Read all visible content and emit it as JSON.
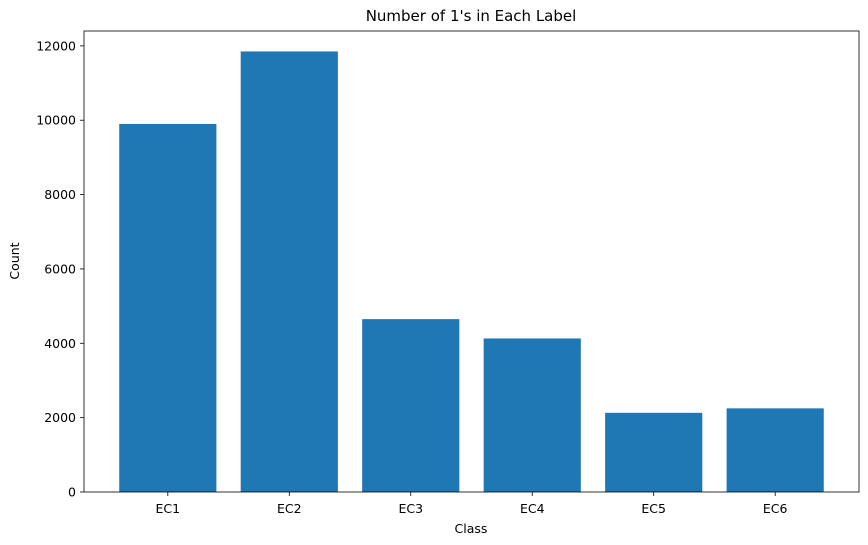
{
  "chart_data": {
    "type": "bar",
    "title": "Number of 1's in Each Label",
    "xlabel": "Class",
    "ylabel": "Count",
    "categories": [
      "EC1",
      "EC2",
      "EC3",
      "EC4",
      "EC5",
      "EC6"
    ],
    "values": [
      9900,
      11850,
      4650,
      4130,
      2130,
      2250
    ],
    "ylim": [
      0,
      12400
    ],
    "yticks": [
      0,
      2000,
      4000,
      6000,
      8000,
      10000,
      12000
    ],
    "ytick_labels": [
      "0",
      "2000",
      "4000",
      "6000",
      "8000",
      "10000",
      "12000"
    ],
    "bar_color": "#1f77b4",
    "grid": false,
    "legend": null
  }
}
